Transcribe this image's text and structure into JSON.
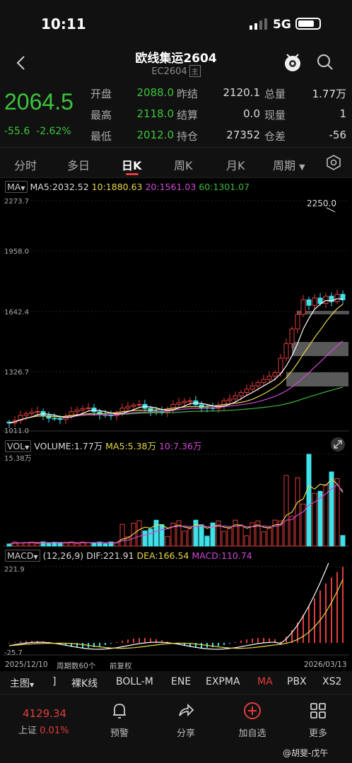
{
  "status": {
    "time": "10:11",
    "network": "5G"
  },
  "nav": {
    "title": "欧线集运2604",
    "code": "EC2604",
    "badge": "主"
  },
  "quote": {
    "last": "2064.5",
    "change": "-55.6",
    "change_pct": "-2.62%",
    "fields": [
      {
        "label": "开盘",
        "value": "2088.0",
        "label2": "昨结",
        "value2": "2120.1",
        "label3": "总量",
        "value3": "1.77万"
      },
      {
        "label": "最高",
        "value": "2118.0",
        "label2": "结算",
        "value2": "0.0",
        "label3": "现量",
        "value3": "1"
      },
      {
        "label": "最低",
        "value": "2012.0",
        "label2": "持仓",
        "value2": "27352",
        "label3": "仓差",
        "value3": "-56"
      }
    ]
  },
  "tabs": [
    {
      "label": "分时"
    },
    {
      "label": "多日"
    },
    {
      "label": "日K"
    },
    {
      "label": "周K"
    },
    {
      "label": "月K"
    },
    {
      "label": "周期"
    }
  ],
  "main_chart": {
    "indicator": "MA",
    "ma5": "MA5:2032.52",
    "ma10": "10:1880.63",
    "ma20": "20:1561.03",
    "ma60": "60:1301.07",
    "y_ticks": [
      "2273.7",
      "1958.0",
      "1642.4",
      "1326.7",
      "1011.0"
    ],
    "high_label": "2250.0"
  },
  "vol_chart": {
    "indicator": "VOL",
    "volume": "VOLUME:1.77万",
    "ma5": "MA5:5.38万",
    "ma10": "10:7.36万",
    "y_max": "15.38万"
  },
  "macd_chart": {
    "indicator": "MACD",
    "params": "(12,26,9)",
    "dif": "DIF:221.91",
    "dea": "DEA:166.54",
    "macd": "MACD:110.74",
    "y_max": "221.9",
    "y_min": "-25.7"
  },
  "footer_axis": {
    "start": "2025/12/10",
    "period": "周期数60个",
    "adj": "前复权",
    "end": "2026/03/13"
  },
  "toolbar": [
    "主图",
    "]",
    "裸K线",
    "BOLL-M",
    "ENE",
    "EXPMA",
    "MA",
    "PBX",
    "XS2"
  ],
  "bottom": {
    "index_value": "4129.34",
    "index_label": "上证",
    "index_pct": "0.01%",
    "items": [
      {
        "label": "预警"
      },
      {
        "label": "分享"
      },
      {
        "label": "加自选"
      },
      {
        "label": "更多"
      }
    ],
    "watermark": "@胡斐-戊午"
  },
  "colors": {
    "up": "#e23c3c",
    "down": "#3cc53c",
    "candle_down": "#3fe0e8",
    "ma5": "#ffffff",
    "ma10": "#e8d84a",
    "ma20": "#d048d8",
    "ma60": "#3cb83c"
  }
}
